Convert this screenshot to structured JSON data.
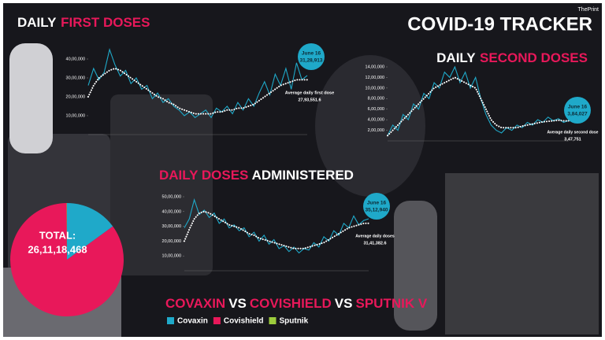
{
  "header": {
    "title": "COVID-19 TRACKER",
    "source": "ThePrint"
  },
  "chart_data": [
    {
      "type": "line",
      "title": [
        "DAILY",
        "FIRST DOSES"
      ],
      "title_colors": [
        "#ffffff",
        "#e8185a"
      ],
      "ylim": [
        0,
        4500000
      ],
      "yticks": [
        {
          "value": 1000000,
          "label": "10,00,000"
        },
        {
          "value": 2000000,
          "label": "20,00,000"
        },
        {
          "value": 3000000,
          "label": "30,00,000"
        },
        {
          "value": 4000000,
          "label": "40,00,000"
        }
      ],
      "series": [
        {
          "color": "#1fa9c9",
          "style": "solid",
          "values": [
            2600000,
            3500000,
            2900000,
            3300000,
            4500000,
            3700000,
            3100000,
            3400000,
            2700000,
            3000000,
            2400000,
            2600000,
            1900000,
            2200000,
            1700000,
            1900000,
            1500000,
            1300000,
            1000000,
            1200000,
            900000,
            1100000,
            1300000,
            900000,
            1400000,
            1200000,
            1500000,
            1100000,
            1700000,
            1300000,
            1900000,
            1500000,
            2200000,
            2800000,
            2100000,
            3200000,
            2600000,
            3500000,
            2400000,
            3800000,
            2900000,
            3128913
          ]
        },
        {
          "color": "#ffffff",
          "style": "dotted",
          "values": [
            2000000,
            2600000,
            3000000,
            3200000,
            3400000,
            3500000,
            3400000,
            3200000,
            3000000,
            2800000,
            2600000,
            2400000,
            2200000,
            2000000,
            1900000,
            1700000,
            1600000,
            1400000,
            1300000,
            1200000,
            1100000,
            1100000,
            1100000,
            1100000,
            1200000,
            1200000,
            1300000,
            1300000,
            1400000,
            1400000,
            1500000,
            1600000,
            1800000,
            2000000,
            2200000,
            2400000,
            2600000,
            2700000,
            2800000,
            2900000,
            2900000,
            2900000
          ]
        }
      ],
      "annotation": {
        "label": "June 16",
        "value": 3128913,
        "value_label": "31,28,913"
      },
      "average": {
        "text": "Average daily first dose",
        "value": 2793551.6,
        "value_label": "27,93,551.6"
      }
    },
    {
      "type": "line",
      "title": [
        "DAILY",
        "SECOND DOSES"
      ],
      "title_colors": [
        "#ffffff",
        "#e8185a"
      ],
      "ylim": [
        0,
        1400000
      ],
      "yticks": [
        {
          "value": 200000,
          "label": "2,00,000"
        },
        {
          "value": 400000,
          "label": "4,00,000"
        },
        {
          "value": 600000,
          "label": "6,00,000"
        },
        {
          "value": 800000,
          "label": "8,00,000"
        },
        {
          "value": 1000000,
          "label": "10,00,000"
        },
        {
          "value": 1200000,
          "label": "12,00,000"
        },
        {
          "value": 1400000,
          "label": "14,00,000"
        }
      ],
      "series": [
        {
          "color": "#1fa9c9",
          "style": "solid",
          "values": [
            100000,
            300000,
            200000,
            500000,
            400000,
            700000,
            600000,
            900000,
            800000,
            1100000,
            1000000,
            1300000,
            1200000,
            1400000,
            1100000,
            1300000,
            1000000,
            1200000,
            800000,
            500000,
            300000,
            200000,
            150000,
            250000,
            200000,
            300000,
            250000,
            350000,
            300000,
            400000,
            350000,
            450000,
            380000,
            420000,
            350000,
            384027
          ]
        },
        {
          "color": "#ffffff",
          "style": "dotted",
          "values": [
            100000,
            200000,
            300000,
            400000,
            500000,
            600000,
            700000,
            800000,
            900000,
            1000000,
            1050000,
            1100000,
            1150000,
            1200000,
            1150000,
            1100000,
            1050000,
            1000000,
            800000,
            600000,
            400000,
            300000,
            250000,
            250000,
            250000,
            250000,
            280000,
            300000,
            320000,
            340000,
            360000,
            370000,
            380000,
            390000,
            380000,
            380000
          ]
        }
      ],
      "annotation": {
        "label": "June 16",
        "value": 384027,
        "value_label": "3,84,027"
      },
      "average": {
        "text": "Average daily second dose",
        "value": 347751,
        "value_label": "3,47,751"
      }
    },
    {
      "type": "line",
      "title": [
        "DAILY DOSES",
        "ADMINISTERED"
      ],
      "title_colors": [
        "#e8185a",
        "#ffffff"
      ],
      "ylim": [
        0,
        5000000
      ],
      "yticks": [
        {
          "value": 1000000,
          "label": "10,00,000"
        },
        {
          "value": 2000000,
          "label": "20,00,000"
        },
        {
          "value": 3000000,
          "label": "30,00,000"
        },
        {
          "value": 4000000,
          "label": "40,00,000"
        },
        {
          "value": 5000000,
          "label": "50,00,000"
        }
      ],
      "series": [
        {
          "color": "#1fa9c9",
          "style": "solid",
          "values": [
            2900000,
            3500000,
            4800000,
            3800000,
            4100000,
            3600000,
            3900000,
            3200000,
            3500000,
            2900000,
            3100000,
            2700000,
            2900000,
            2300000,
            2600000,
            2000000,
            2400000,
            1800000,
            2100000,
            1500000,
            1700000,
            1300000,
            1600000,
            1200000,
            1500000,
            1400000,
            1900000,
            1600000,
            2300000,
            2000000,
            2700000,
            2400000,
            3200000,
            2900000,
            3700000,
            3100000,
            3400000,
            3512940
          ]
        },
        {
          "color": "#ffffff",
          "style": "dotted",
          "values": [
            2000000,
            2800000,
            3500000,
            3900000,
            4000000,
            3900000,
            3700000,
            3500000,
            3300000,
            3100000,
            3000000,
            2900000,
            2700000,
            2500000,
            2400000,
            2200000,
            2100000,
            2000000,
            1900000,
            1800000,
            1700000,
            1600000,
            1500000,
            1500000,
            1500000,
            1600000,
            1700000,
            1800000,
            1900000,
            2100000,
            2300000,
            2500000,
            2700000,
            2900000,
            3000000,
            3100000,
            3200000,
            3200000
          ]
        }
      ],
      "annotation": {
        "label": "June 16",
        "value": 3512940,
        "value_label": "35,12,940"
      },
      "average": {
        "text": "Average daily doses",
        "value": 3141382.6,
        "value_label": "31,41,382.6"
      }
    },
    {
      "type": "pie",
      "title": [
        "COVAXIN",
        "VS",
        "COVISHIELD",
        "VS",
        "SPUTNIK V"
      ],
      "title_colors": [
        "#e8185a",
        "#ffffff",
        "#e8185a",
        "#ffffff",
        "#e8185a"
      ],
      "total_label": "TOTAL:",
      "total": 261118468,
      "total_value_label": "26,11,18,468",
      "categories": [
        "Covaxin",
        "Covishield",
        "Sputnik"
      ],
      "values": [
        15,
        84.9,
        0.1
      ],
      "colors": [
        "#1fa9c9",
        "#e8185a",
        "#9ccc3c"
      ]
    }
  ]
}
